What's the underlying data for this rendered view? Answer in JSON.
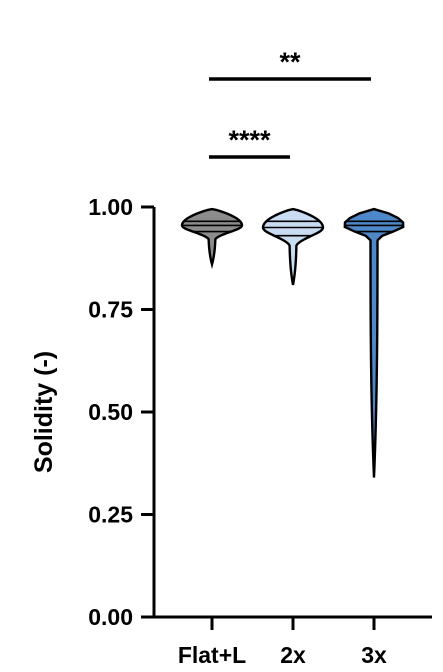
{
  "chart_data": {
    "type": "violin",
    "xlabel": "",
    "ylabel": "Solidity (-)",
    "ylim": [
      0,
      1.0
    ],
    "yticks": [
      {
        "value": 0.0,
        "label": "0.00"
      },
      {
        "value": 0.25,
        "label": "0.25"
      },
      {
        "value": 0.5,
        "label": "0.50"
      },
      {
        "value": 0.75,
        "label": "0.75"
      },
      {
        "value": 1.0,
        "label": "1.00"
      }
    ],
    "categories": [
      "Flat+L",
      "2x",
      "3x"
    ],
    "series": [
      {
        "category": "Flat+L",
        "min": 0.86,
        "q1": 0.94,
        "median": 0.955,
        "q3": 0.965,
        "max": 0.995,
        "color": "#8c8c8c"
      },
      {
        "category": "2x",
        "min": 0.81,
        "q1": 0.93,
        "median": 0.95,
        "q3": 0.965,
        "max": 0.995,
        "color": "#c9dcf2"
      },
      {
        "category": "3x",
        "min": 0.34,
        "q1": 0.94,
        "median": 0.955,
        "q3": 0.965,
        "max": 0.995,
        "color": "#4f88c9"
      }
    ],
    "significance": [
      {
        "from": "Flat+L",
        "to": "2x",
        "label": "****"
      },
      {
        "from": "Flat+L",
        "to": "3x",
        "label": "**"
      }
    ],
    "grid": false,
    "legend": "none"
  }
}
